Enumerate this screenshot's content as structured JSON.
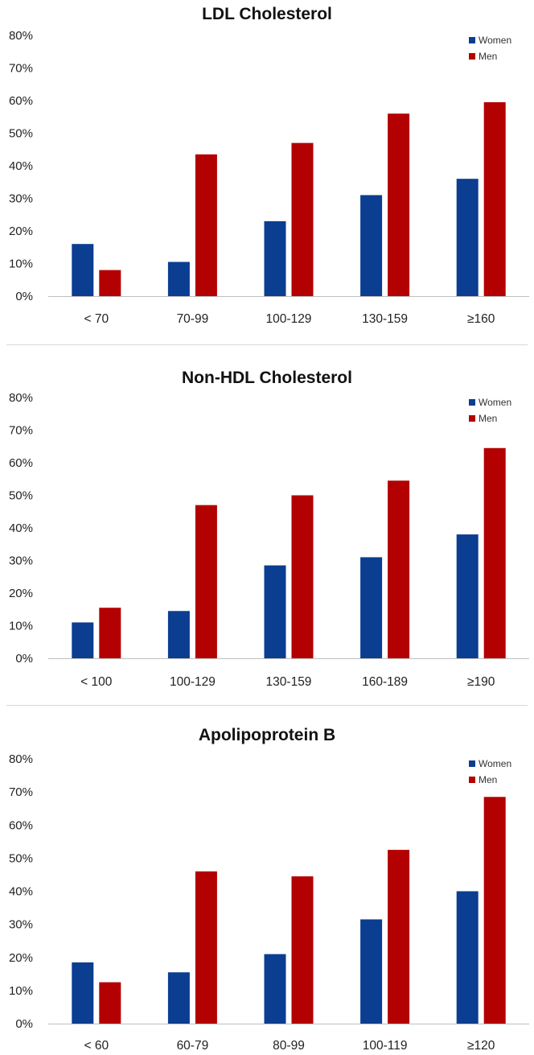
{
  "chart_data": [
    {
      "type": "bar",
      "title": "LDL Cholesterol",
      "categories": [
        "< 70",
        "70-99",
        "100-129",
        "130-159",
        "≥160"
      ],
      "series": [
        {
          "name": "Women",
          "color": "#0b3d91",
          "values": [
            16,
            10.5,
            23,
            31,
            36
          ]
        },
        {
          "name": "Men",
          "color": "#b30000",
          "values": [
            8,
            43.5,
            47,
            56,
            59.5
          ]
        }
      ],
      "ylim": [
        0,
        80
      ],
      "yticks": [
        "0%",
        "10%",
        "20%",
        "30%",
        "40%",
        "50%",
        "60%",
        "70%",
        "80%"
      ],
      "legend": "top-right"
    },
    {
      "type": "bar",
      "title": "Non-HDL Cholesterol",
      "categories": [
        "< 100",
        "100-129",
        "130-159",
        "160-189",
        "≥190"
      ],
      "series": [
        {
          "name": "Women",
          "color": "#0b3d91",
          "values": [
            11,
            14.5,
            28.5,
            31,
            38
          ]
        },
        {
          "name": "Men",
          "color": "#b30000",
          "values": [
            15.5,
            47,
            50,
            54.5,
            64.5
          ]
        }
      ],
      "ylim": [
        0,
        80
      ],
      "yticks": [
        "0%",
        "10%",
        "20%",
        "30%",
        "40%",
        "50%",
        "60%",
        "70%",
        "80%"
      ],
      "legend": "top-right"
    },
    {
      "type": "bar",
      "title": "Apolipoprotein B",
      "categories": [
        "< 60",
        "60-79",
        "80-99",
        "100-119",
        "≥120"
      ],
      "series": [
        {
          "name": "Women",
          "color": "#0b3d91",
          "values": [
            18.5,
            15.5,
            21,
            31.5,
            40
          ]
        },
        {
          "name": "Men",
          "color": "#b30000",
          "values": [
            12.5,
            46,
            44.5,
            52.5,
            68.5
          ]
        }
      ],
      "ylim": [
        0,
        80
      ],
      "yticks": [
        "0%",
        "10%",
        "20%",
        "30%",
        "40%",
        "50%",
        "60%",
        "70%",
        "80%"
      ],
      "legend": "top-right"
    }
  ]
}
